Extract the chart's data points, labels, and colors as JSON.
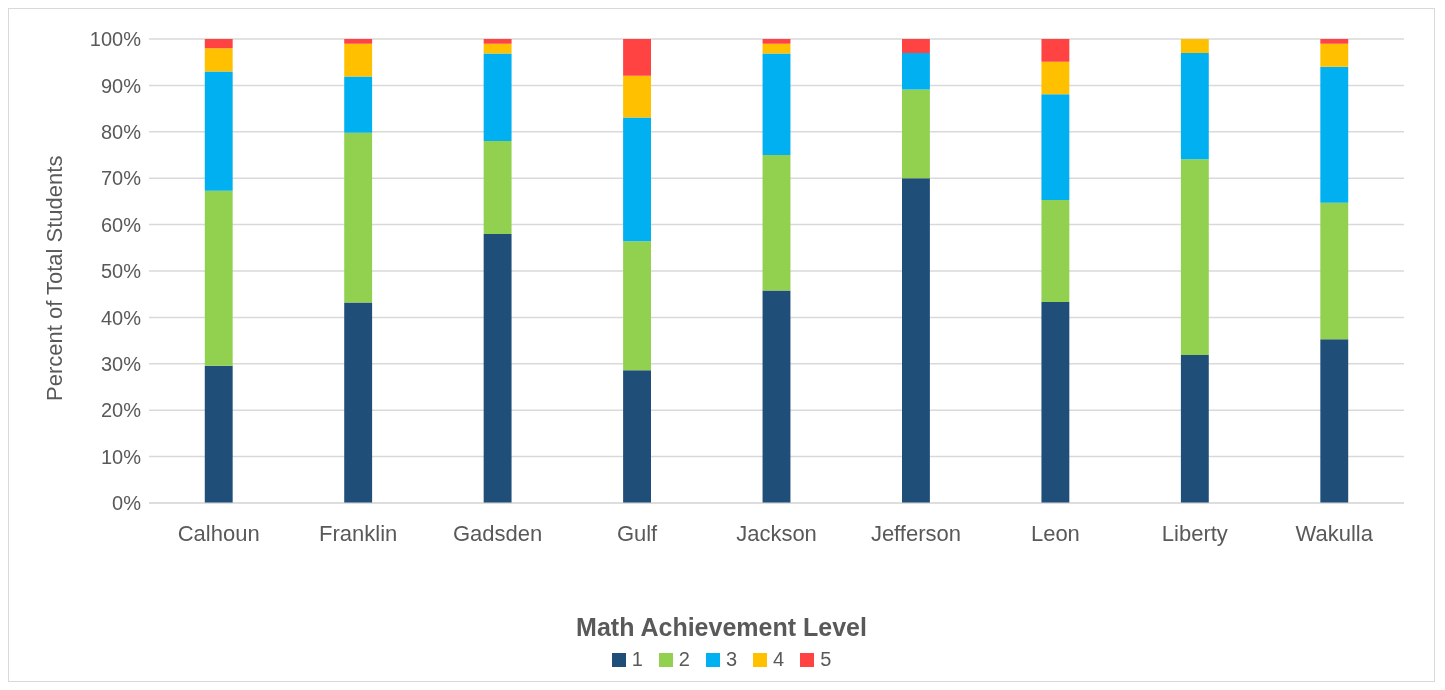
{
  "chart_data": {
    "type": "bar",
    "stacked": true,
    "ylabel": "Percent of Total Students",
    "legend_title": "Math Achievement Level",
    "categories": [
      "Calhoun",
      "Franklin",
      "Gadsden",
      "Gulf",
      "Jackson",
      "Jefferson",
      "Leon",
      "Liberty",
      "Wakulla"
    ],
    "series": [
      {
        "name": "1",
        "color": "#1f4e79",
        "values": [
          29.6,
          43.2,
          58.0,
          28.6,
          45.8,
          70.0,
          43.3,
          31.9,
          35.3
        ]
      },
      {
        "name": "2",
        "color": "#92d050",
        "values": [
          37.7,
          36.6,
          20.0,
          27.8,
          29.2,
          19.1,
          22.0,
          42.2,
          29.4
        ]
      },
      {
        "name": "3",
        "color": "#00b0f0",
        "values": [
          25.7,
          12.1,
          18.9,
          26.7,
          21.9,
          7.9,
          22.8,
          22.9,
          29.3
        ]
      },
      {
        "name": "4",
        "color": "#ffc000",
        "values": [
          5.0,
          7.1,
          2.1,
          9.0,
          2.1,
          0,
          7.0,
          3.0,
          5.0
        ]
      },
      {
        "name": "5",
        "color": "#ff4343",
        "values": [
          2.0,
          1.0,
          1.0,
          7.9,
          1.0,
          3.0,
          4.9,
          0,
          1.0
        ]
      }
    ],
    "ylim": [
      0,
      100
    ],
    "yticks": [
      {
        "value": 0,
        "label": "0%"
      },
      {
        "value": 10,
        "label": "10%"
      },
      {
        "value": 20,
        "label": "20%"
      },
      {
        "value": 30,
        "label": "30%"
      },
      {
        "value": 40,
        "label": "40%"
      },
      {
        "value": 50,
        "label": "50%"
      },
      {
        "value": 60,
        "label": "60%"
      },
      {
        "value": 70,
        "label": "70%"
      },
      {
        "value": 80,
        "label": "80%"
      },
      {
        "value": 90,
        "label": "90%"
      },
      {
        "value": 100,
        "label": "100%"
      }
    ],
    "grid": "y",
    "legend": "bottom"
  }
}
